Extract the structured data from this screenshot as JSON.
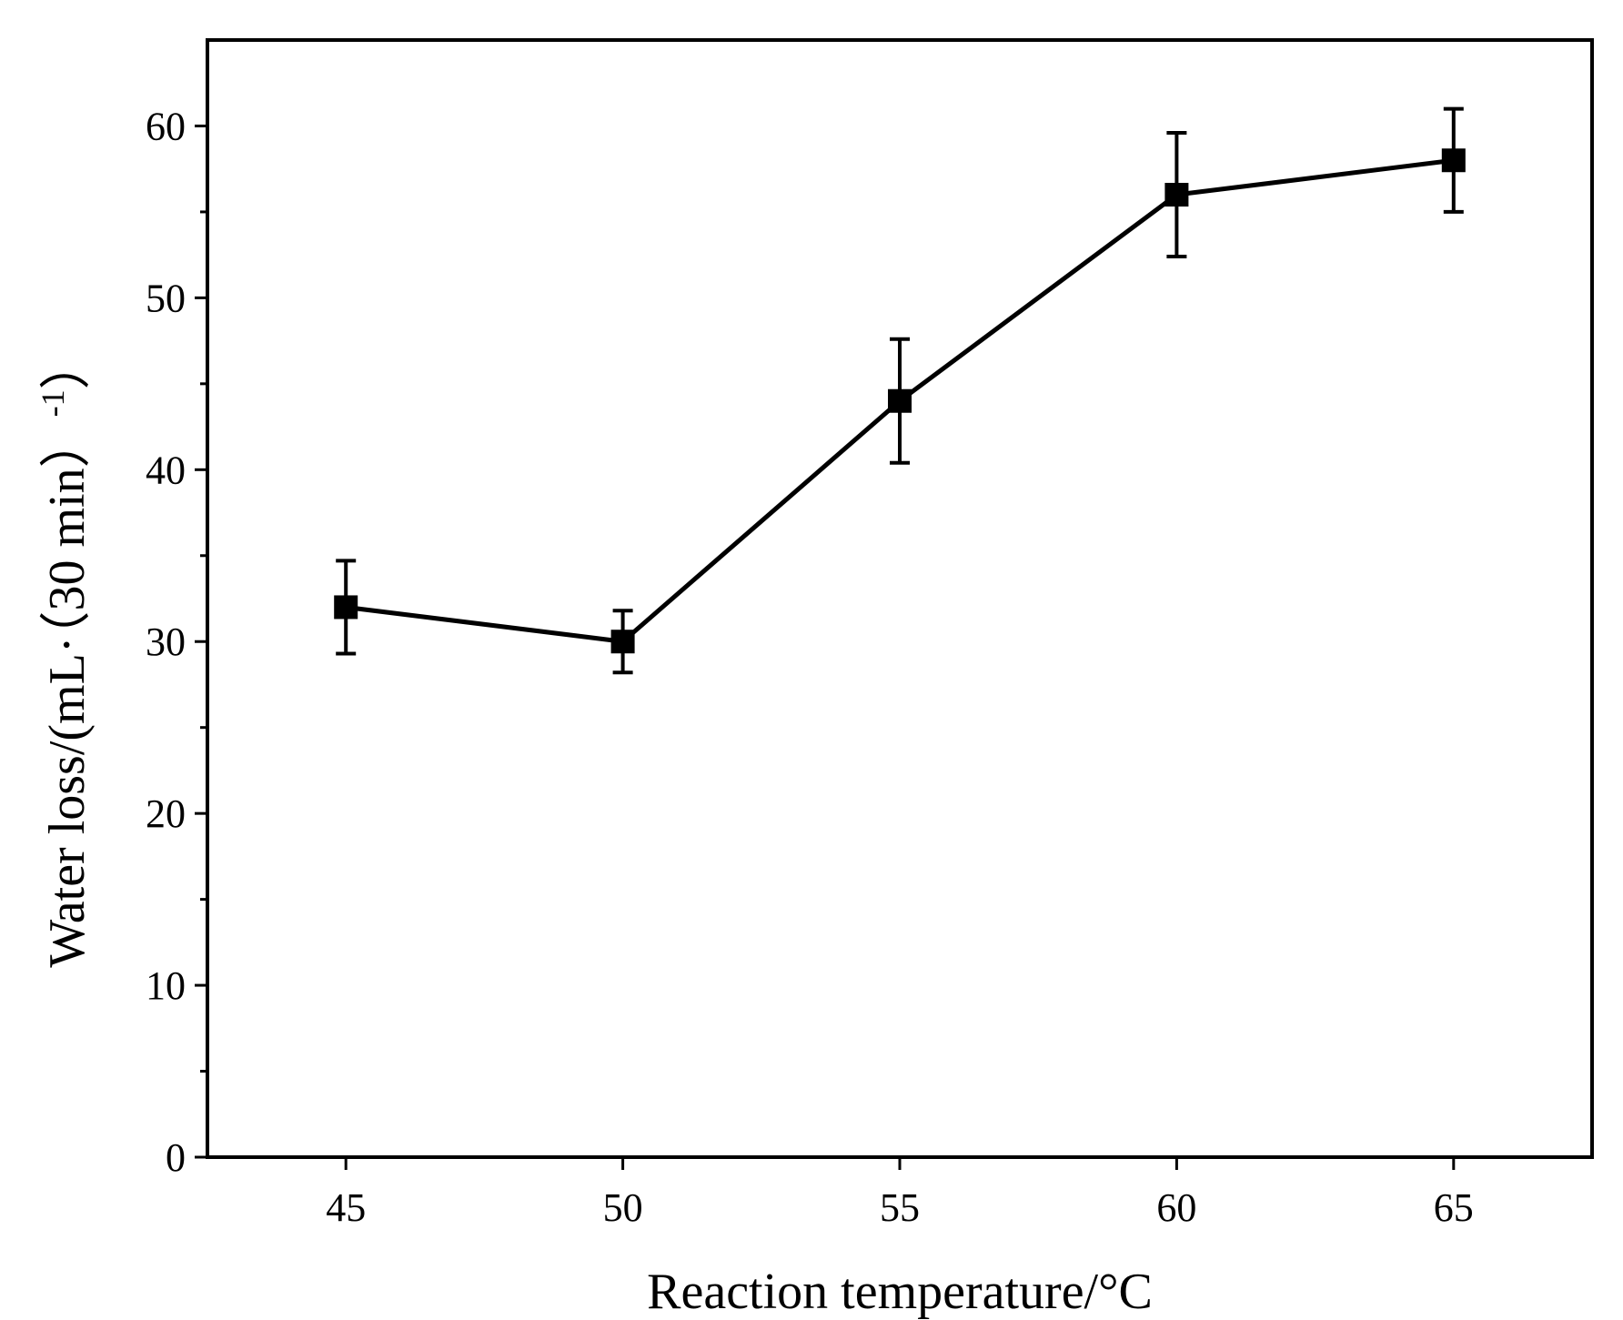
{
  "chart_data": {
    "type": "line",
    "title": "",
    "xlabel": "Reaction temperature/°C",
    "ylabel": "Water loss/(mL·（30 min）-1)",
    "ylabel_parts": {
      "main": "Water loss/(mL·（30 min）",
      "superscript": "-1",
      "close": "）"
    },
    "xlim": [
      42.5,
      67.5
    ],
    "ylim": [
      0,
      65
    ],
    "x_ticks": [
      45,
      50,
      55,
      60,
      65
    ],
    "y_ticks": [
      0,
      10,
      20,
      30,
      40,
      50,
      60
    ],
    "y_minor_ticks": [
      5,
      15,
      25,
      35,
      45,
      55
    ],
    "x_tick_labels": [
      "45",
      "50",
      "55",
      "60",
      "65"
    ],
    "y_tick_labels": [
      "0",
      "10",
      "20",
      "30",
      "40",
      "50",
      "60"
    ],
    "grid": false,
    "series": [
      {
        "name": "Water loss",
        "marker": "square",
        "color": "#000000",
        "x": [
          45,
          50,
          55,
          60,
          65
        ],
        "y": [
          32,
          30,
          44,
          56,
          58
        ],
        "error": [
          2.7,
          1.8,
          3.6,
          3.6,
          3.0
        ]
      }
    ]
  }
}
